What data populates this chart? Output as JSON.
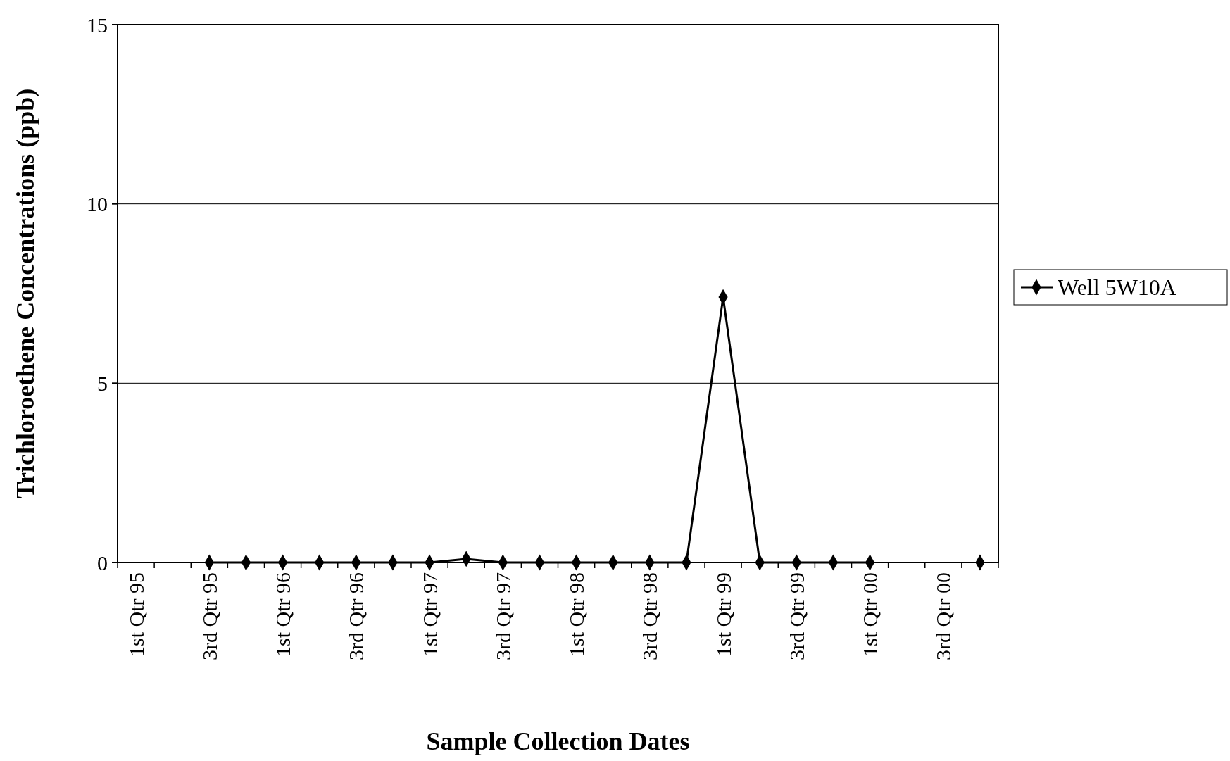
{
  "chart_data": {
    "type": "line",
    "xlabel": "Sample Collection Dates",
    "ylabel": "Trichloroethene Concentrations (ppb)",
    "categories": [
      "1st Qtr 95",
      null,
      "3rd Qtr 95",
      null,
      "1st Qtr 96",
      null,
      "3rd Qtr 96",
      null,
      "1st Qtr 97",
      null,
      "3rd Qtr 97",
      null,
      "1st Qtr 98",
      null,
      "3rd Qtr 98",
      null,
      "1st Qtr 99",
      null,
      "3rd Qtr 99",
      null,
      "1st Qtr 00",
      null,
      "3rd Qtr 00",
      null
    ],
    "series": [
      {
        "name": "Well 5W10A",
        "color": "#000000",
        "values": [
          null,
          null,
          0,
          0,
          0,
          0,
          0,
          0,
          0,
          0.1,
          0,
          0,
          0,
          0,
          0,
          0,
          7.4,
          0,
          0,
          0,
          0,
          null,
          null,
          0
        ]
      }
    ],
    "ylim": [
      0,
      15
    ],
    "yticks": [
      0,
      5,
      10,
      15
    ],
    "grid": "y",
    "legend": "right",
    "marker": "diamond",
    "line_style": "solid"
  }
}
